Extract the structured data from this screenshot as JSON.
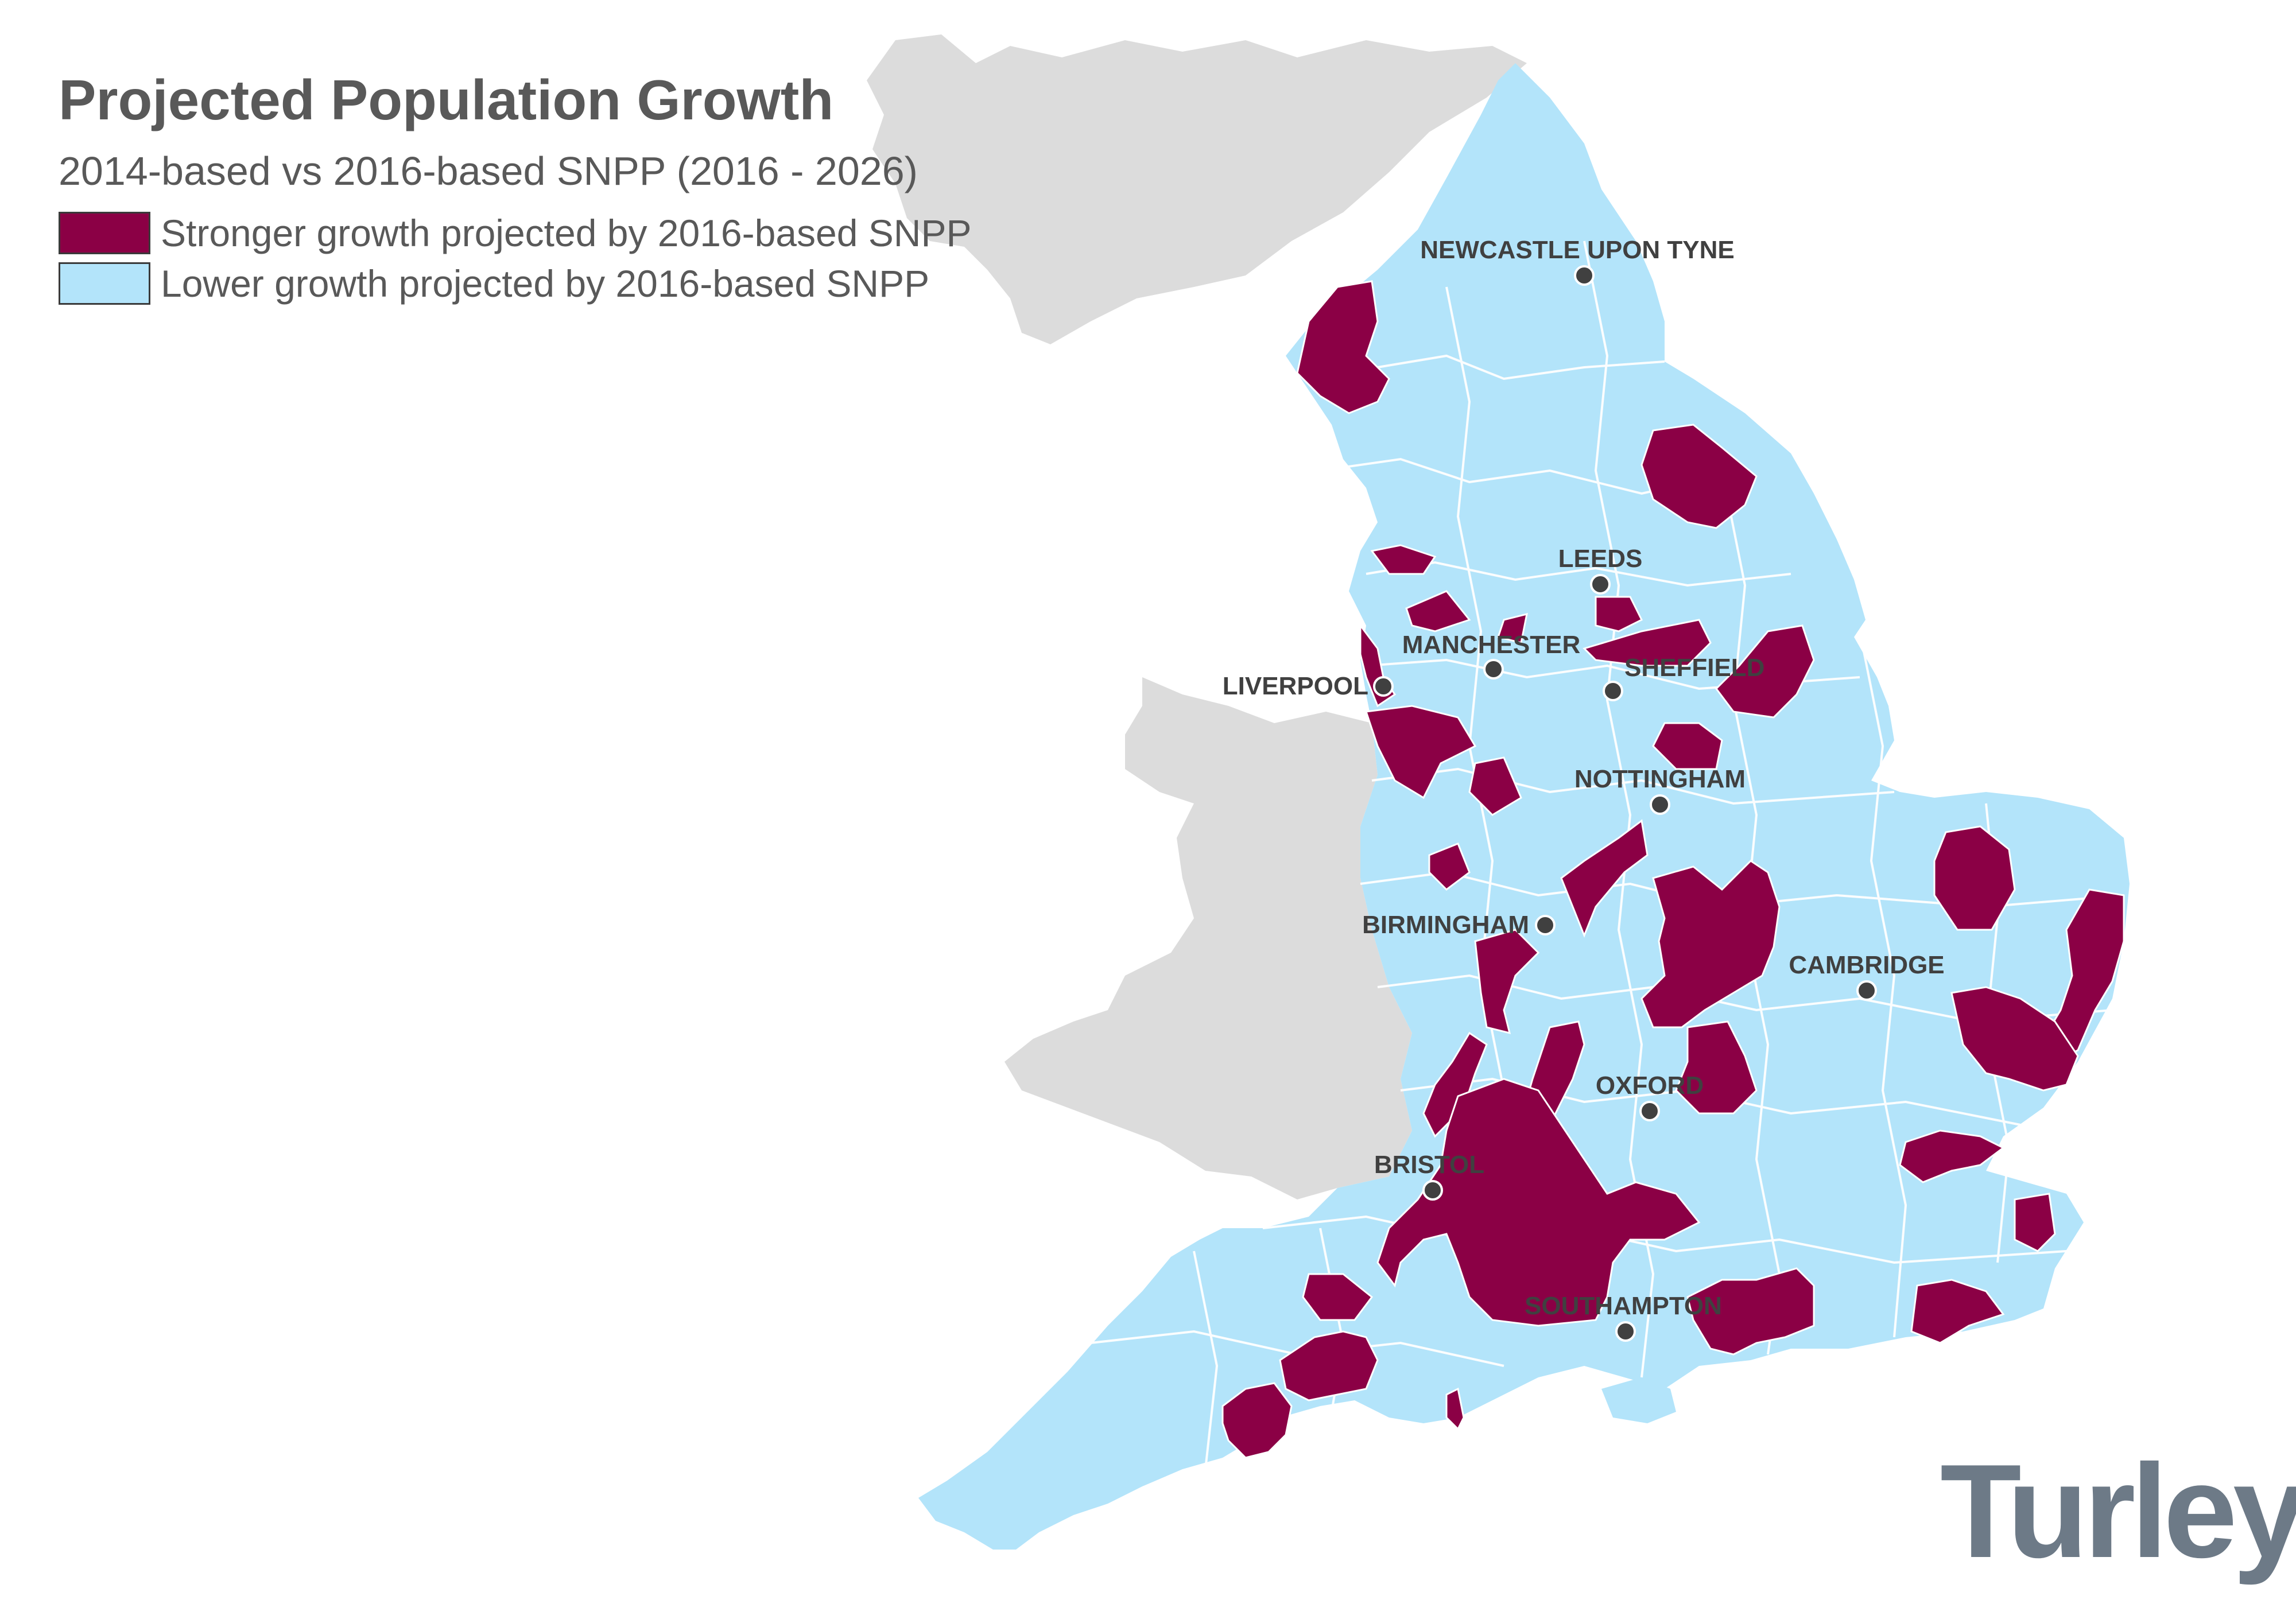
{
  "title": "Projected Population Growth",
  "subtitle": "2014-based vs 2016-based SNPP (2016 - 2026)",
  "legend": [
    {
      "label": "Stronger growth projected by 2016-based SNPP",
      "color": "#8b0045"
    },
    {
      "label": "Lower growth projected by 2016-based SNPP",
      "color": "#b3e4fa"
    }
  ],
  "colors": {
    "stronger": "#8b0045",
    "lower": "#b3e4fa",
    "other_land": "#dcdcdc",
    "boundary": "#ffffff",
    "city_dot": "#404040"
  },
  "cities": [
    {
      "name": "NEWCASTLE UPON TYNE"
    },
    {
      "name": "LEEDS"
    },
    {
      "name": "MANCHESTER"
    },
    {
      "name": "LIVERPOOL"
    },
    {
      "name": "SHEFFIELD"
    },
    {
      "name": "NOTTINGHAM"
    },
    {
      "name": "BIRMINGHAM"
    },
    {
      "name": "CAMBRIDGE"
    },
    {
      "name": "OXFORD"
    },
    {
      "name": "BRISTOL"
    },
    {
      "name": "SOUTHAMPTON"
    }
  ],
  "brand": "Turley"
}
